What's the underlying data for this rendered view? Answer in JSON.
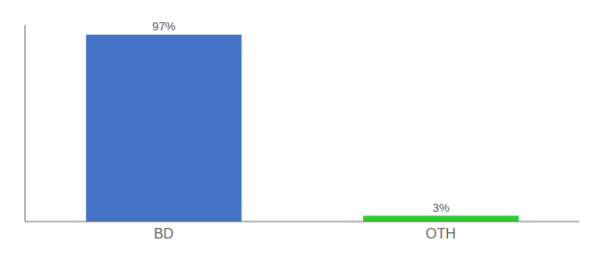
{
  "chart_data": {
    "type": "bar",
    "categories": [
      "BD",
      "OTH"
    ],
    "values": [
      97,
      3
    ],
    "value_labels": [
      "97%",
      "3%"
    ],
    "colors": [
      "#4472c4",
      "#2ecc2e"
    ],
    "ylim": [
      0,
      102
    ],
    "yticks": [],
    "tick_labels": "x",
    "data_labels": true,
    "grid": false
  }
}
